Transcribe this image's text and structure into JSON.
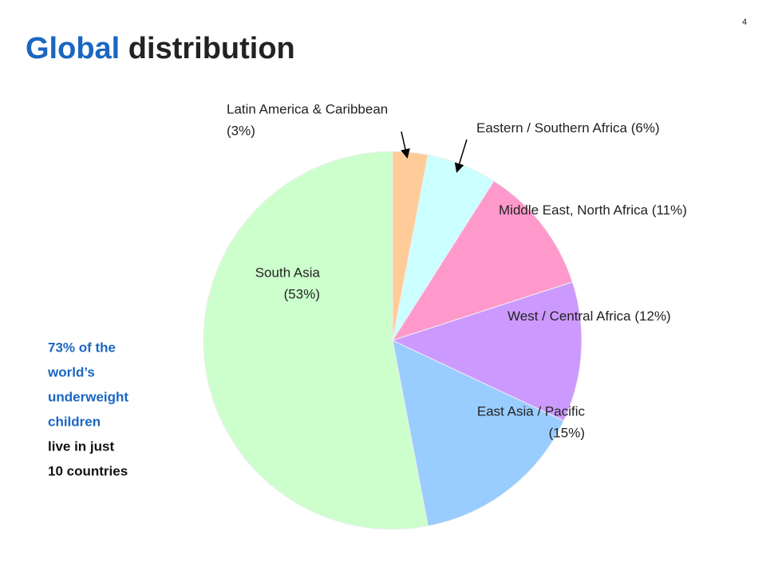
{
  "page_number": "4",
  "chart_data": {
    "type": "pie",
    "title": {
      "highlight": "Global",
      "rest": "distribution"
    },
    "categories": [
      "Latin America & Caribbean",
      "Eastern / Southern Africa",
      "Middle East, North Africa",
      "West / Central Africa",
      "East Asia / Pacific",
      "South Asia"
    ],
    "values": [
      3,
      6,
      11,
      12,
      15,
      53
    ],
    "value_labels": [
      "(3%)",
      "(6%)",
      "(11%)",
      "(12%)",
      "(15%)",
      "(53%)"
    ],
    "colors": [
      "#ffcc99",
      "#ccffff",
      "#ff99cc",
      "#cc99ff",
      "#99ccff",
      "#ccffcc"
    ],
    "annotation": {
      "highlight_lines": [
        "73% of the",
        "world’s",
        "underweight",
        "children"
      ],
      "text_lines": [
        "live in just",
        "10 countries"
      ]
    }
  }
}
